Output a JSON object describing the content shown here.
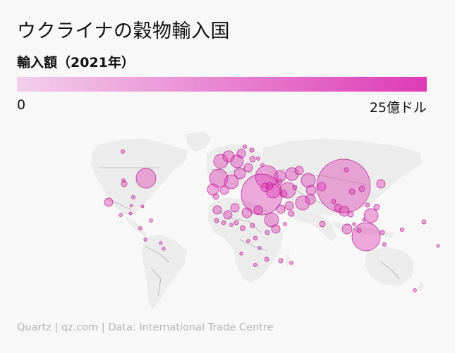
{
  "title": "ウクライナの穀物輸入国",
  "legend": {
    "title": "輸入額（2021年）",
    "min_label": "0",
    "max_label": "25億ドル",
    "color_low": "#f3cfec",
    "color_high": "#dd3bb6"
  },
  "source": "Quartz | qz.com | Data: International Trade Centre",
  "colors": {
    "land": "#ececec",
    "border": "#9a9a9a",
    "bubble_fill": "#dd3bb6",
    "bubble_stroke": "#b5168e",
    "background": "#f8f8f8"
  }
}
